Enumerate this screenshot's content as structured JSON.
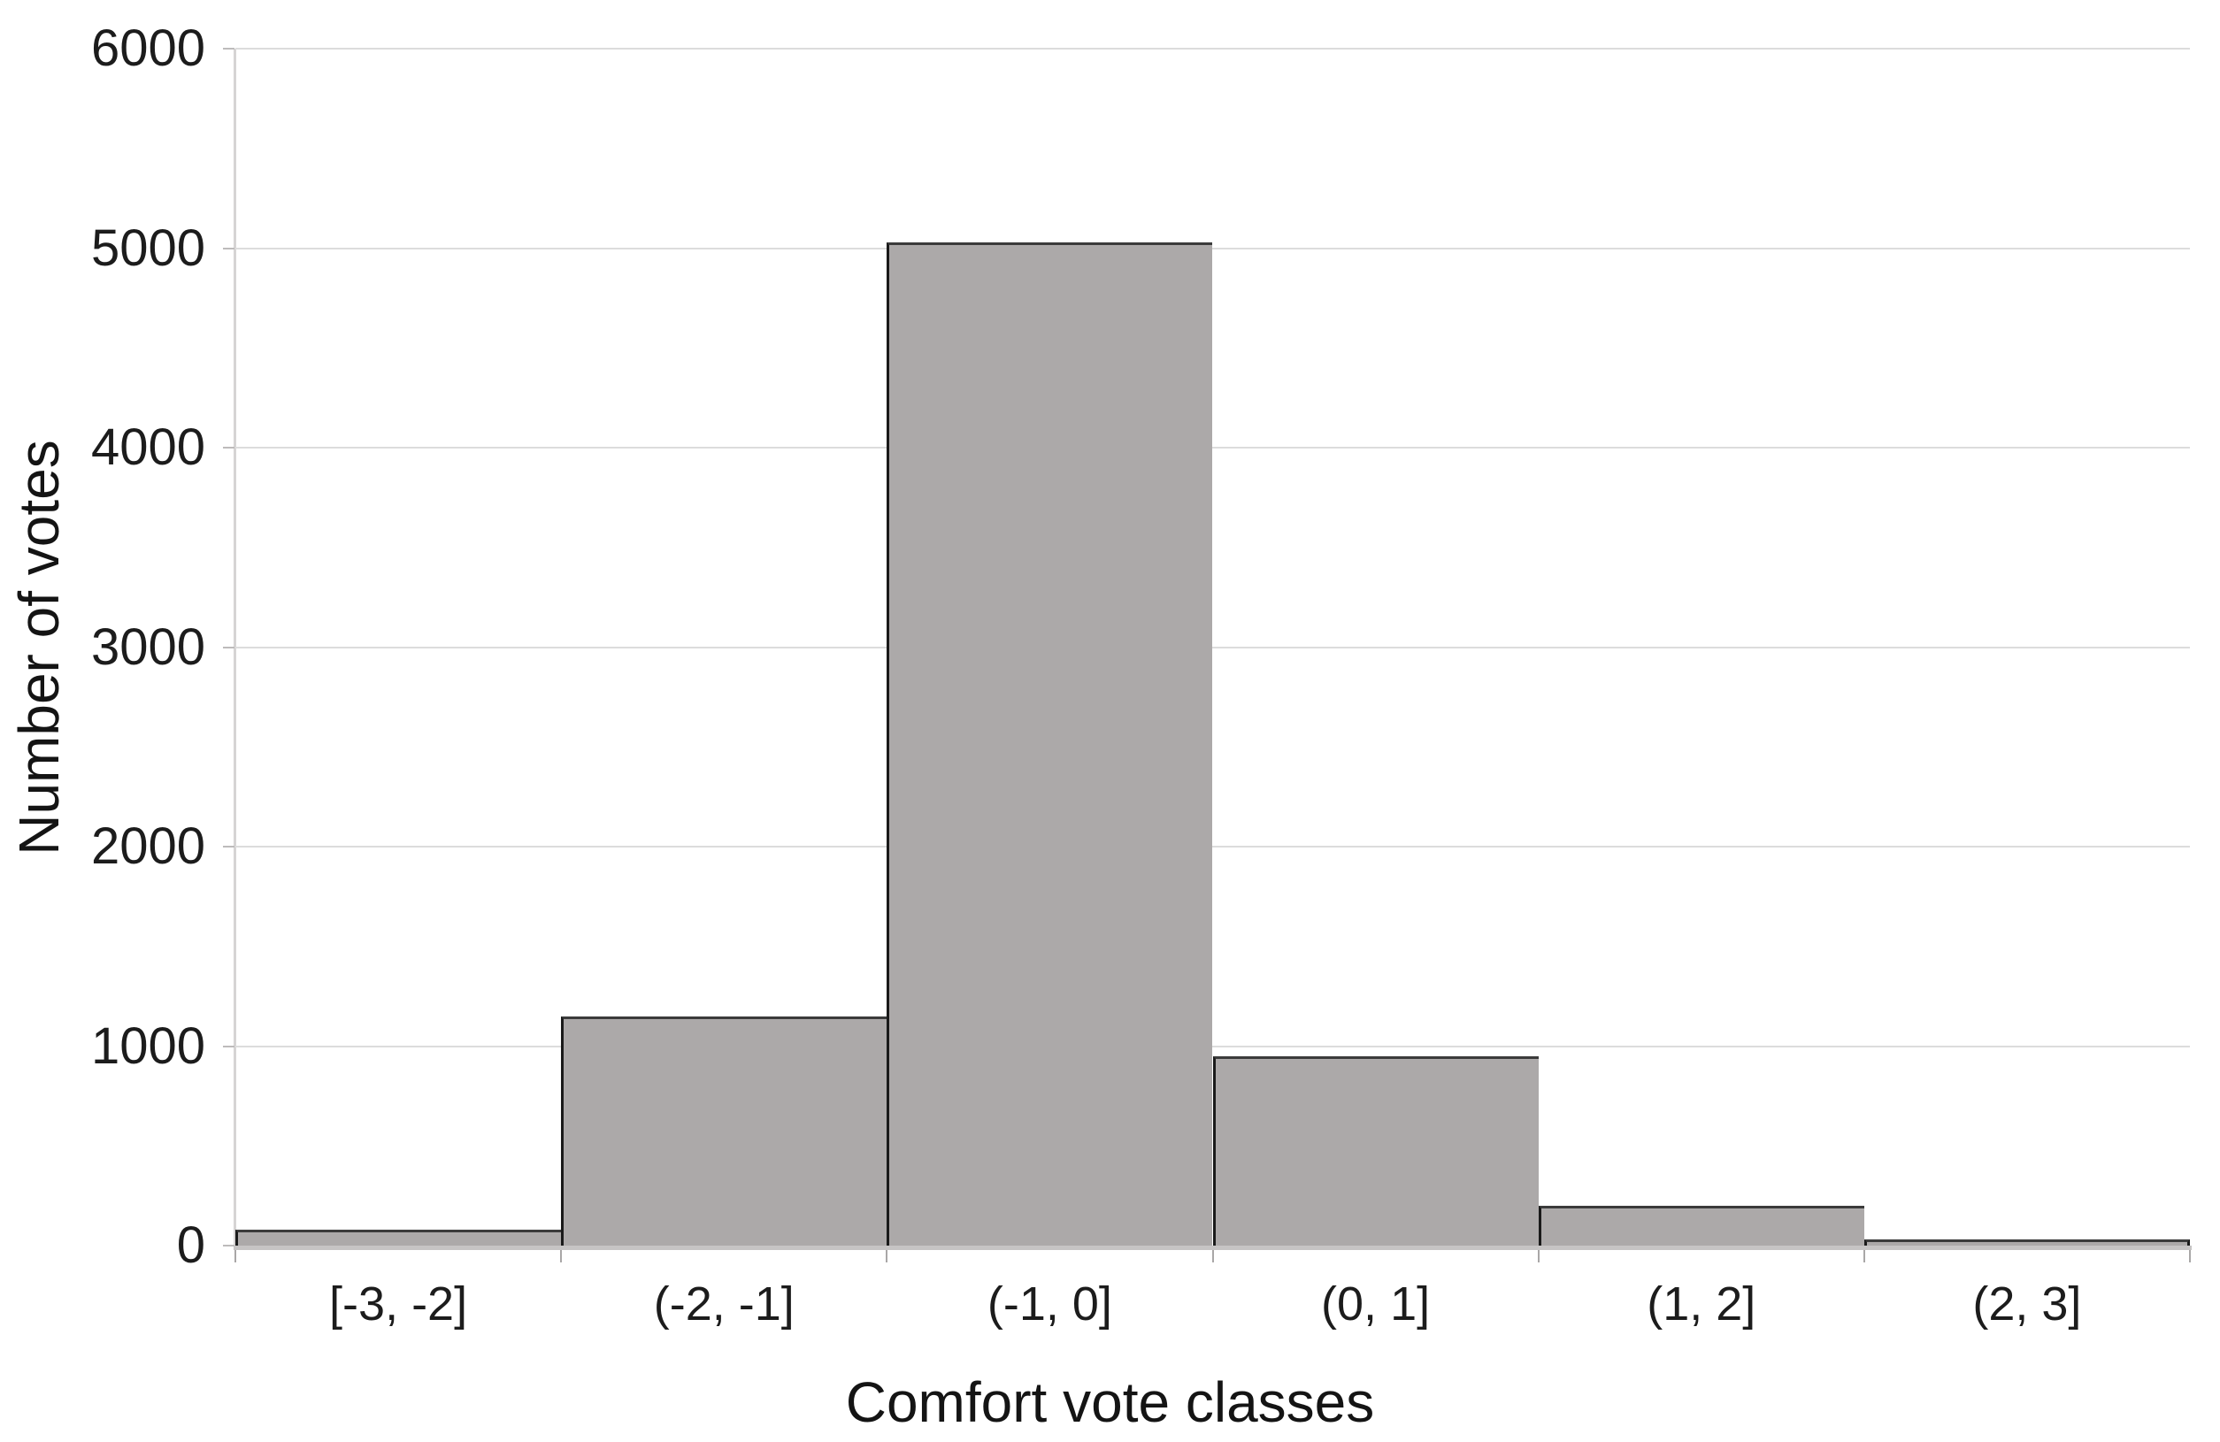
{
  "chart_data": {
    "type": "bar",
    "subtype": "histogram",
    "title": "",
    "categories": [
      "[-3, -2]",
      "(-2, -1]",
      "(-1, 0]",
      "(0, 1]",
      "(1, 2]",
      "(2, 3]"
    ],
    "values": [
      80,
      1150,
      5030,
      950,
      200,
      30
    ],
    "xlabel": "Comfort vote classes",
    "ylabel": "Number of votes",
    "ylim": [
      0,
      6000
    ],
    "yticks": [
      0,
      1000,
      2000,
      3000,
      4000,
      5000,
      6000
    ],
    "grid": "horizontal-light",
    "legend": "none",
    "bars_contiguous": true,
    "colors": {
      "bar_fill": "#aca9a9",
      "bar_outline": "#1a1a1a",
      "gridline": "#dcdcdc",
      "axis_line": "#c6c4c4",
      "text": "#1c1c1c",
      "background": "#ffffff"
    }
  }
}
